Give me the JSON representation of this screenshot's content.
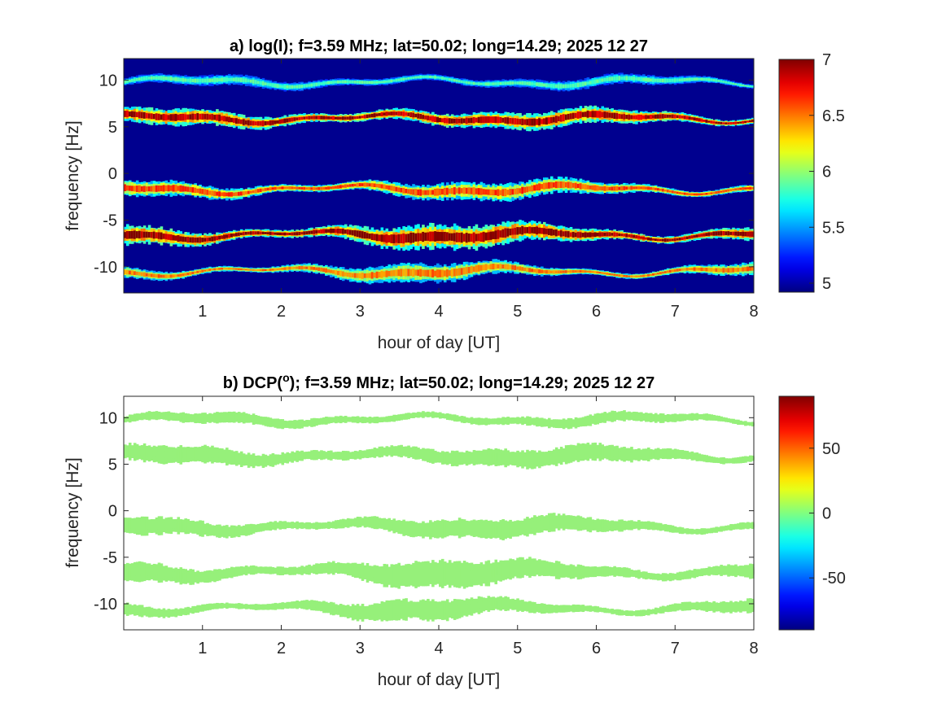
{
  "chart_data": [
    {
      "type": "heatmap",
      "title": "a) log(I); f=3.59 MHz;  lat=50.02; long=14.29; 2025 12 27",
      "xlabel": "hour of day [UT]",
      "ylabel": "frequency [Hz]",
      "xlim": [
        0,
        8
      ],
      "ylim": [
        -12.8,
        12.3
      ],
      "x_ticks": [
        1,
        2,
        3,
        4,
        5,
        6,
        7,
        8
      ],
      "y_ticks": [
        10,
        5,
        0,
        -5,
        -10
      ],
      "colorbar": {
        "range": [
          4.92,
          7.0
        ],
        "ticks": [
          "7",
          "6.5",
          "6",
          "5.5",
          "5"
        ],
        "tick_values": [
          7,
          6.5,
          6,
          5.5,
          5
        ],
        "colormap": "jet"
      },
      "background_value": 4.95,
      "bands": [
        {
          "center_hz": 9.8,
          "peak": 5.85,
          "width_hz": 0.35
        },
        {
          "center_hz": 5.9,
          "peak": 6.85,
          "width_hz": 0.55
        },
        {
          "center_hz": -1.7,
          "peak": 6.55,
          "width_hz": 0.55
        },
        {
          "center_hz": -6.6,
          "peak": 6.9,
          "width_hz": 0.7
        },
        {
          "center_hz": -10.5,
          "peak": 6.45,
          "width_hz": 0.5
        }
      ]
    },
    {
      "type": "heatmap",
      "title_prefix": "b) DCP(",
      "title_super": "o",
      "title_suffix": "); f=3.59 MHz;  lat=50.02; long=14.29; 2025 12 27",
      "xlabel": "hour of day [UT]",
      "ylabel": "frequency [Hz]",
      "xlim": [
        0,
        8
      ],
      "ylim": [
        -12.8,
        12.3
      ],
      "x_ticks": [
        1,
        2,
        3,
        4,
        5,
        6,
        7,
        8
      ],
      "y_ticks": [
        10,
        5,
        0,
        -5,
        -10
      ],
      "colorbar": {
        "range": [
          -90,
          90
        ],
        "ticks": [
          "50",
          "0",
          "-50"
        ],
        "tick_values": [
          50,
          0,
          -50
        ],
        "colormap": "jet"
      },
      "band_value": 15,
      "band_color": "#96f07a",
      "bands": [
        {
          "center_hz": 9.8,
          "width_hz": 0.35
        },
        {
          "center_hz": 5.9,
          "width_hz": 0.6
        },
        {
          "center_hz": -1.7,
          "width_hz": 0.6
        },
        {
          "center_hz": -6.6,
          "width_hz": 0.75
        },
        {
          "center_hz": -10.5,
          "width_hz": 0.55
        }
      ]
    }
  ]
}
